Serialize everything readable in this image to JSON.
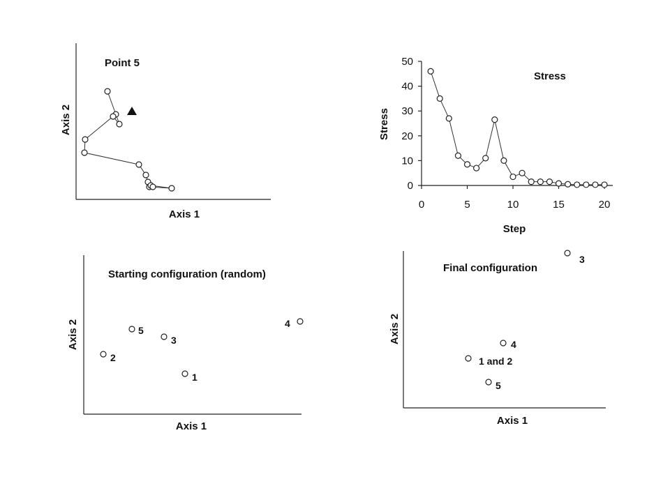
{
  "chart_data": [
    {
      "type": "line",
      "title": "Point 5",
      "xlabel": "Axis 1",
      "ylabel": "Axis 2",
      "x": [
        45,
        57,
        62,
        53,
        13,
        12,
        90,
        100,
        103,
        105,
        137,
        107,
        110
      ],
      "y": [
        155,
        122,
        108,
        119,
        86,
        67,
        50,
        35,
        25,
        18,
        16,
        20,
        18
      ],
      "xlim": [
        0,
        270
      ],
      "ylim": [
        0,
        190
      ],
      "marker": {
        "shape": "triangle",
        "x": 80,
        "y": 126,
        "color": "#111111"
      }
    },
    {
      "type": "line",
      "title": "Stress",
      "xlabel": "Step",
      "ylabel": "Stress",
      "x": [
        1,
        2,
        3,
        4,
        5,
        6,
        7,
        8,
        9,
        10,
        11,
        12,
        13,
        14,
        15,
        16,
        17,
        18,
        19,
        20
      ],
      "y": [
        46,
        35,
        27,
        12,
        8.5,
        7,
        11,
        26.5,
        10,
        3.5,
        5,
        1.5,
        1.5,
        1.5,
        0.8,
        0.5,
        0.3,
        0.3,
        0.3,
        0.3
      ],
      "xlim": [
        0,
        20
      ],
      "ylim": [
        0,
        50
      ],
      "xticks": [
        "0",
        "5",
        "10",
        "15",
        "20"
      ],
      "yticks": [
        "0",
        "10",
        "20",
        "30",
        "40",
        "50"
      ]
    },
    {
      "type": "scatter",
      "title": "Starting configuration (random)",
      "xlabel": "Axis 1",
      "ylabel": "Axis 2",
      "xlim": [
        0,
        320
      ],
      "ylim": [
        0,
        230
      ],
      "points": [
        {
          "label": "1",
          "x": 145,
          "y": 58
        },
        {
          "label": "2",
          "x": 28,
          "y": 86
        },
        {
          "label": "3",
          "x": 115,
          "y": 111
        },
        {
          "label": "4",
          "x": 310,
          "y": 133
        },
        {
          "label": "5",
          "x": 69,
          "y": 122
        }
      ]
    },
    {
      "type": "scatter",
      "title": "Final configuration",
      "xlabel": "Axis 1",
      "ylabel": "Axis 2",
      "xlim": [
        0,
        290
      ],
      "ylim": [
        0,
        225
      ],
      "points": [
        {
          "label": "3",
          "x": 235,
          "y": 222
        },
        {
          "label": "4",
          "x": 143,
          "y": 93
        },
        {
          "label": "1 and 2",
          "x": 93,
          "y": 71
        },
        {
          "label": "5",
          "x": 122,
          "y": 37
        }
      ]
    }
  ]
}
